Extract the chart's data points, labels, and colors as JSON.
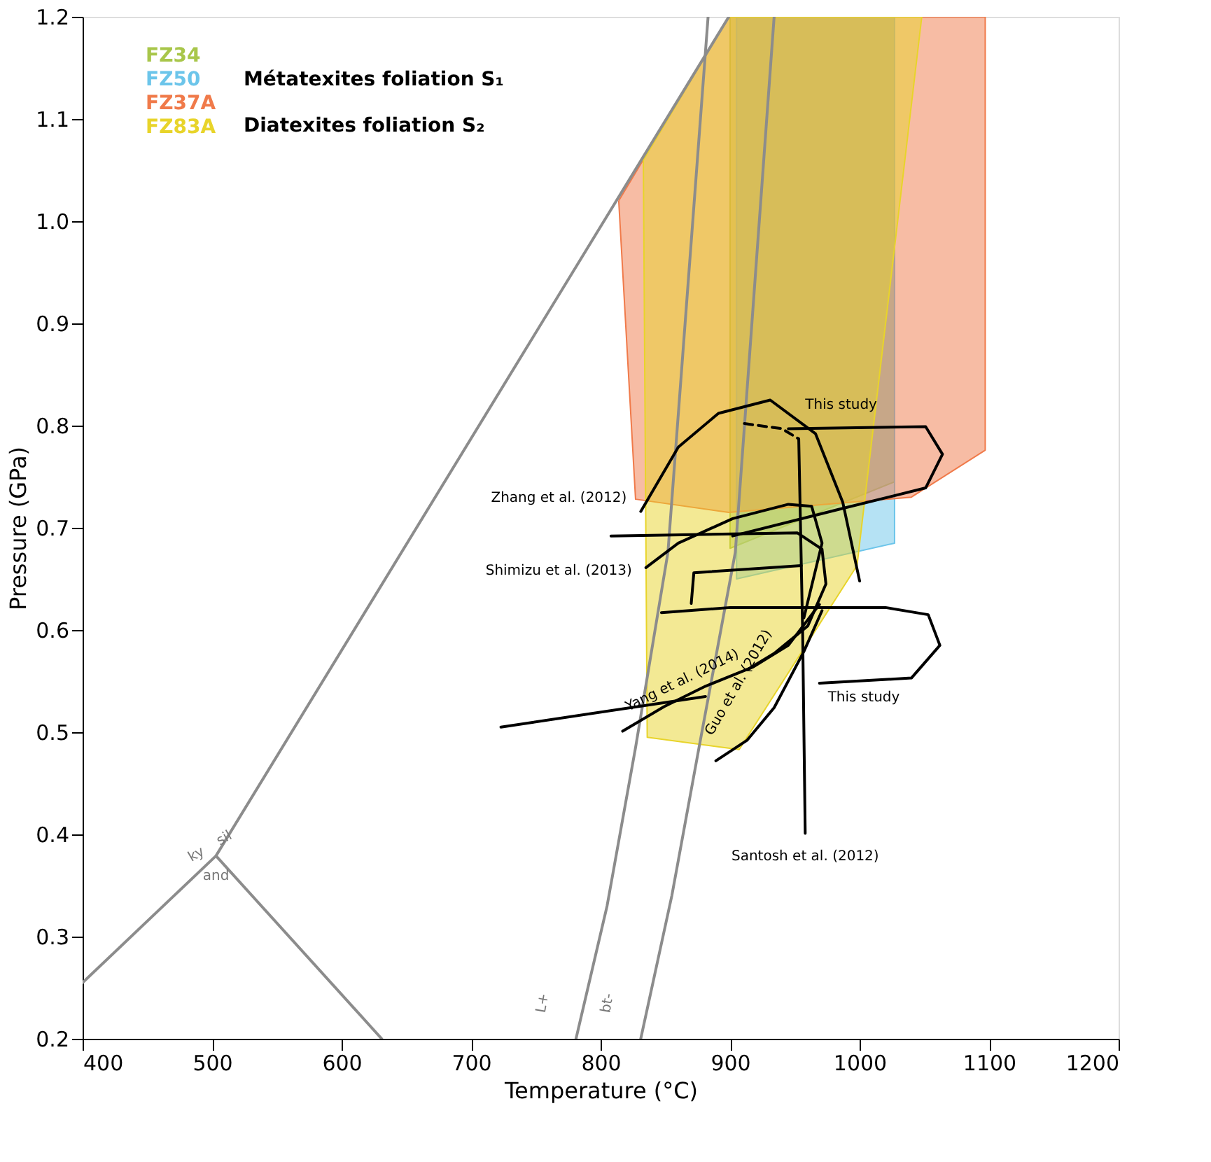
{
  "chart_data": {
    "type": "line",
    "xlabel": "Temperature (°C)",
    "ylabel": "Pressure (GPa)",
    "xlim": [
      400,
      1200
    ],
    "ylim": [
      0.2,
      1.2
    ],
    "xticks": [
      400,
      500,
      600,
      700,
      800,
      900,
      1000,
      1100,
      1200
    ],
    "yticks": [
      0.2,
      0.3,
      0.4,
      0.5,
      0.6,
      0.7,
      0.8,
      0.9,
      {
        "value": 1.0,
        "label": "1.0"
      },
      1.1,
      1.2
    ],
    "grid": false,
    "series": [
      {
        "type": "area",
        "name": "FZ34",
        "color": "#a8c64a",
        "x": [
          900,
          1027,
          1027,
          900,
          900
        ],
        "values": [
          1.2,
          1.2,
          0.745,
          0.68,
          1.2
        ]
      },
      {
        "type": "area",
        "name": "FZ50",
        "color": "#6cc5ea",
        "x": [
          905,
          1027,
          1027,
          905,
          905
        ],
        "values": [
          1.2,
          1.2,
          0.685,
          0.65,
          1.2
        ]
      },
      {
        "type": "area",
        "name": "FZ37A",
        "color": "#f07a4a",
        "x": [
          814,
          899,
          1097,
          1097,
          1040,
          899,
          827,
          814
        ],
        "values": [
          1.02,
          1.2,
          1.2,
          0.776,
          0.73,
          0.715,
          0.728,
          1.02
        ]
      },
      {
        "type": "area",
        "name": "FZ83A",
        "color": "#e8d42a",
        "x": [
          833,
          899,
          1048,
          998,
          907,
          836,
          833
        ],
        "values": [
          1.06,
          1.2,
          1.2,
          0.663,
          0.483,
          0.495,
          1.06
        ]
      },
      {
        "color": "#8c8c8c",
        "x": [
          400,
          503,
          899,
          503,
          631
        ],
        "values": [
          0.255,
          0.379,
          1.2,
          0.379,
          0.2
        ]
      },
      {
        "color": "#8c8c8c",
        "x": [
          781,
          805,
          827,
          852,
          883
        ],
        "values": [
          0.2,
          0.33,
          0.485,
          0.676,
          1.2
        ]
      },
      {
        "color": "#8c8c8c",
        "x": [
          831,
          855,
          876,
          904,
          934
        ],
        "values": [
          0.2,
          0.34,
          0.485,
          0.676,
          1.2
        ]
      },
      {
        "color": "#000000",
        "x": [
          945,
          1051,
          1064,
          1051,
          987,
          902
        ],
        "values": [
          0.797,
          0.799,
          0.772,
          0.739,
          0.719,
          0.692
        ]
      },
      {
        "color": "#000000",
        "line_style": "dashed",
        "x": [
          911,
          940,
          953
        ],
        "values": [
          0.802,
          0.797,
          0.787
        ]
      },
      {
        "color": "#000000",
        "x": [
          953,
          956,
          958
        ],
        "values": [
          0.787,
          0.6,
          0.401
        ]
      },
      {
        "color": "#000000",
        "x": [
          1000,
          987,
          966,
          931,
          891,
          860,
          831
        ],
        "values": [
          0.648,
          0.725,
          0.792,
          0.825,
          0.812,
          0.779,
          0.716
        ]
      },
      {
        "color": "#000000",
        "x": [
          957,
          971,
          963,
          945,
          902,
          860,
          835
        ],
        "values": [
          0.612,
          0.685,
          0.721,
          0.723,
          0.709,
          0.685,
          0.661
        ]
      },
      {
        "color": "#000000",
        "x": [
          808,
          952,
          971,
          974,
          960,
          934,
          913
        ],
        "values": [
          0.692,
          0.695,
          0.679,
          0.645,
          0.604,
          0.577,
          0.561
        ]
      },
      {
        "color": "#000000",
        "x": [
          955,
          872,
          870
        ],
        "values": [
          0.663,
          0.656,
          0.626
        ]
      },
      {
        "color": "#000000",
        "x": [
          969,
          1040,
          1062,
          1053,
          1020,
          900,
          847
        ],
        "values": [
          0.548,
          0.553,
          0.585,
          0.615,
          0.622,
          0.622,
          0.617
        ]
      },
      {
        "color": "#000000",
        "x": [
          969,
          945,
          918,
          881,
          849,
          817
        ],
        "values": [
          0.625,
          0.585,
          0.564,
          0.545,
          0.525,
          0.501
        ]
      },
      {
        "color": "#000000",
        "x": [
          881,
          723
        ],
        "values": [
          0.535,
          0.505
        ]
      },
      {
        "color": "#000000",
        "x": [
          971,
          957,
          934,
          913,
          889
        ],
        "values": [
          0.619,
          0.579,
          0.524,
          0.492,
          0.472
        ]
      }
    ],
    "annotations": [
      "Métatexites foliation S₁",
      "Diatexites foliation S₂",
      {
        "text": "This study",
        "x": 945,
        "y": 0.797
      },
      {
        "text": "This study",
        "x": 969,
        "y": 0.548
      },
      {
        "text": "Zhang et al. (2012)",
        "x": 831,
        "y": 0.716
      },
      {
        "text": "Shimizu et al. (2013)",
        "x": 835,
        "y": 0.661
      },
      {
        "text": "Yang et al. (2014)",
        "x": 817,
        "y": 0.501
      },
      {
        "text": "Guo et al. (2012)",
        "x": 889,
        "y": 0.472
      },
      {
        "text": "Santosh et al. (2012)",
        "x": 958,
        "y": 0.401
      },
      {
        "text": "L+",
        "x": 781,
        "y": 0.2
      },
      {
        "text": "bt-",
        "x": 831,
        "y": 0.2
      },
      {
        "text": "ky",
        "x": 503,
        "y": 0.379
      },
      {
        "text": "sil",
        "x": 503,
        "y": 0.379
      },
      {
        "text": "and",
        "x": 503,
        "y": 0.379
      }
    ]
  }
}
